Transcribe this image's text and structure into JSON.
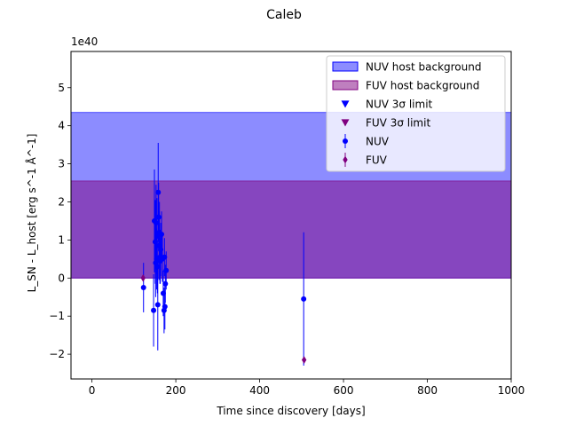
{
  "chart_data": {
    "type": "scatter",
    "title": "Caleb",
    "xlabel": "Time since discovery [days]",
    "ylabel": "L_SN - L_host [erg s^-1 Å^-1]",
    "y_scale_label": "1e40",
    "xlim": [
      -50,
      1000
    ],
    "ylim": [
      -2.65,
      5.95
    ],
    "xticks": [
      0,
      200,
      400,
      600,
      800,
      1000
    ],
    "xtick_labels": [
      "0",
      "200",
      "400",
      "600",
      "800",
      "1000"
    ],
    "yticks": [
      -2,
      -1,
      0,
      1,
      2,
      3,
      4,
      5
    ],
    "ytick_labels": [
      "−2",
      "−1",
      "0",
      "1",
      "2",
      "3",
      "4",
      "5"
    ],
    "grid": false,
    "legend_position": "upper right",
    "bands": [
      {
        "name": "NUV host background",
        "ymin": 0,
        "ymax": 4.35,
        "color": "#0000ff",
        "opacity": 0.45
      },
      {
        "name": "FUV host background",
        "ymin": 0,
        "ymax": 2.55,
        "color": "#800080",
        "opacity": 0.5
      }
    ],
    "limit_series": [
      {
        "name": "NUV 3σ limit",
        "color": "#0000ff",
        "marker": "triangle-down",
        "points": []
      },
      {
        "name": "FUV 3σ limit",
        "color": "#800080",
        "marker": "triangle-down",
        "points": []
      }
    ],
    "series": [
      {
        "name": "NUV",
        "color": "#0000ff",
        "marker": "circle",
        "points": [
          {
            "x": 123,
            "y": -0.25,
            "err": 0.65
          },
          {
            "x": 147,
            "y": -0.85,
            "err": 0.95
          },
          {
            "x": 149,
            "y": 1.5,
            "err": 1.35
          },
          {
            "x": 151,
            "y": 0.95,
            "err": 1.1
          },
          {
            "x": 152,
            "y": 0.4,
            "err": 0.9
          },
          {
            "x": 153,
            "y": 1.45,
            "err": 1.0
          },
          {
            "x": 154,
            "y": 0.5,
            "err": 0.8
          },
          {
            "x": 155,
            "y": 1.1,
            "err": 1.0
          },
          {
            "x": 156,
            "y": 0.3,
            "err": 0.7
          },
          {
            "x": 157,
            "y": -0.7,
            "err": 1.2
          },
          {
            "x": 158,
            "y": 2.25,
            "err": 1.3
          },
          {
            "x": 159,
            "y": 1.6,
            "err": 0.9
          },
          {
            "x": 160,
            "y": 0.85,
            "err": 0.9
          },
          {
            "x": 161,
            "y": 1.2,
            "err": 0.8
          },
          {
            "x": 162,
            "y": 0.55,
            "err": 0.7
          },
          {
            "x": 163,
            "y": 0.45,
            "err": 0.6
          },
          {
            "x": 164,
            "y": 0.75,
            "err": 0.7
          },
          {
            "x": 166,
            "y": 1.15,
            "err": 0.6
          },
          {
            "x": 168,
            "y": 0.5,
            "err": 0.6
          },
          {
            "x": 170,
            "y": -0.4,
            "err": 0.6
          },
          {
            "x": 172,
            "y": -0.85,
            "err": 0.6
          },
          {
            "x": 173,
            "y": 0.55,
            "err": 0.5
          },
          {
            "x": 174,
            "y": -0.75,
            "err": 0.6
          },
          {
            "x": 175,
            "y": -0.15,
            "err": 0.5
          },
          {
            "x": 177,
            "y": 0.2,
            "err": 0.5
          },
          {
            "x": 505,
            "y": -0.55,
            "err": 1.75
          }
        ]
      },
      {
        "name": "FUV",
        "color": "#800080",
        "marker": "diamond",
        "points": [
          {
            "x": 122,
            "y": 0.0,
            "err": 0.05
          },
          {
            "x": 506,
            "y": -2.15,
            "err": 0.05
          }
        ]
      }
    ]
  }
}
